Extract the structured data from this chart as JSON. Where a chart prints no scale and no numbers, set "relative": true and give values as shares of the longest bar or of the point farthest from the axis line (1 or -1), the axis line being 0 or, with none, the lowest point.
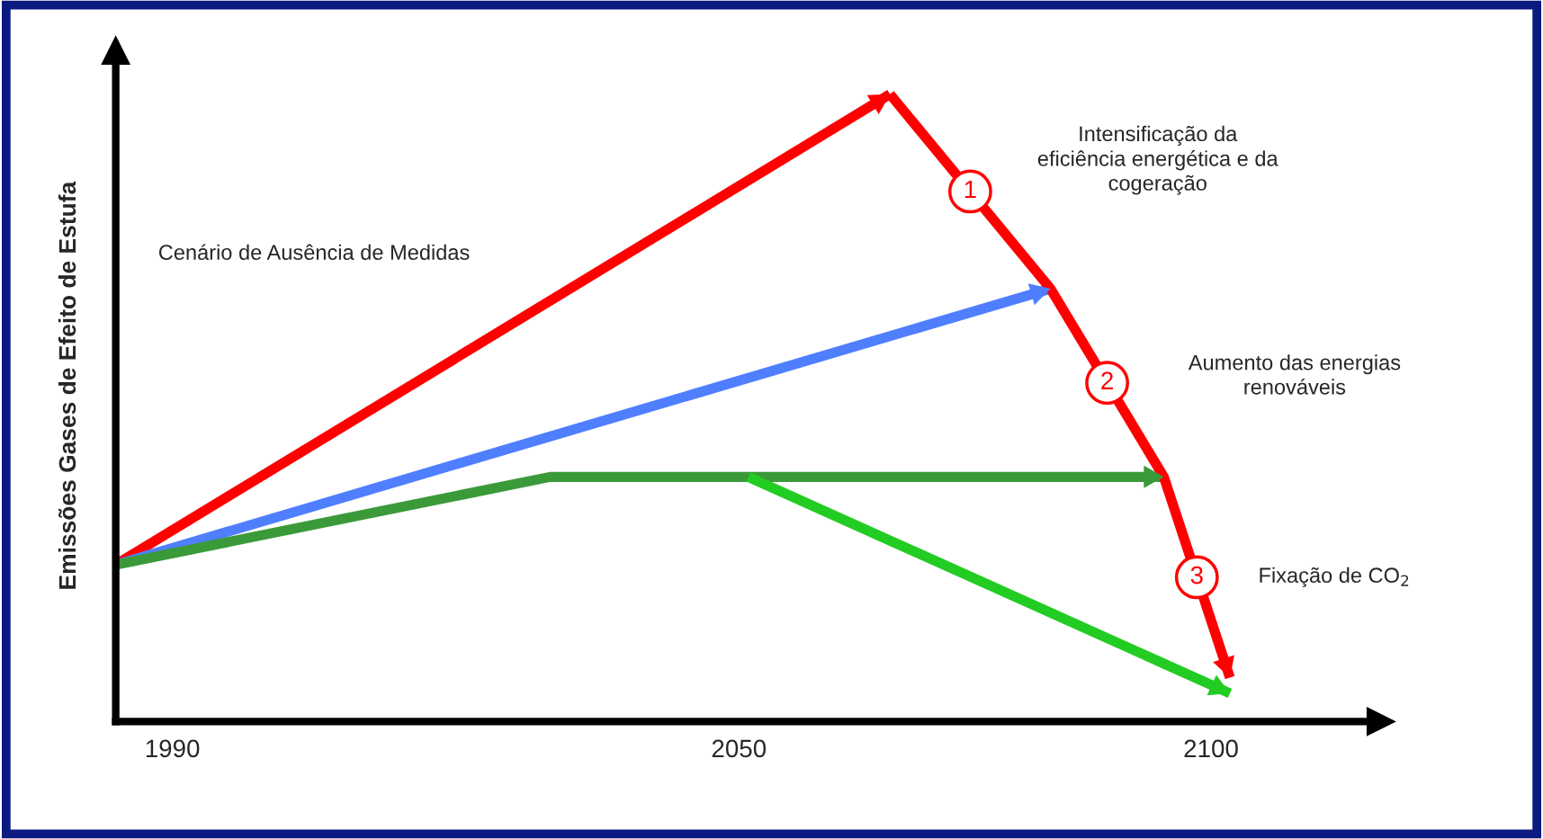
{
  "chart_data": {
    "type": "line",
    "relative": true,
    "ylabel": "Emissões Gases de Efeito de Estufa",
    "xlim": [
      1984,
      2118
    ],
    "xticks": [
      1990,
      2050,
      2100
    ],
    "marker": "none",
    "line_style": "solid",
    "series": [
      {
        "name": "Cenário de Ausência de Medidas",
        "color": "#ff0000",
        "x": [
          1984,
          2066
        ],
        "values": [
          0.25,
          1
        ]
      },
      {
        "color": "#4f7fff",
        "x": [
          1984,
          2083
        ],
        "values": [
          0.25,
          0.69
        ]
      },
      {
        "color": "#3a9a3a",
        "x": [
          1984,
          2030,
          2095
        ],
        "values": [
          0.25,
          0.39,
          0.39
        ]
      },
      {
        "color": "#22cc22",
        "x": [
          2051,
          2102
        ],
        "values": [
          0.39,
          0.045
        ]
      },
      {
        "color": "#ff0000",
        "x": [
          2066,
          2083,
          2095,
          2102
        ],
        "values": [
          1,
          0.69,
          0.39,
          0.07
        ]
      }
    ],
    "annotations": [
      "1",
      "2",
      "3",
      "Intensificação da\neficiência energética e da\ncogeração",
      "Aumento das energias\nrenováveis",
      "Fixação de CO$_{2}$"
    ]
  }
}
